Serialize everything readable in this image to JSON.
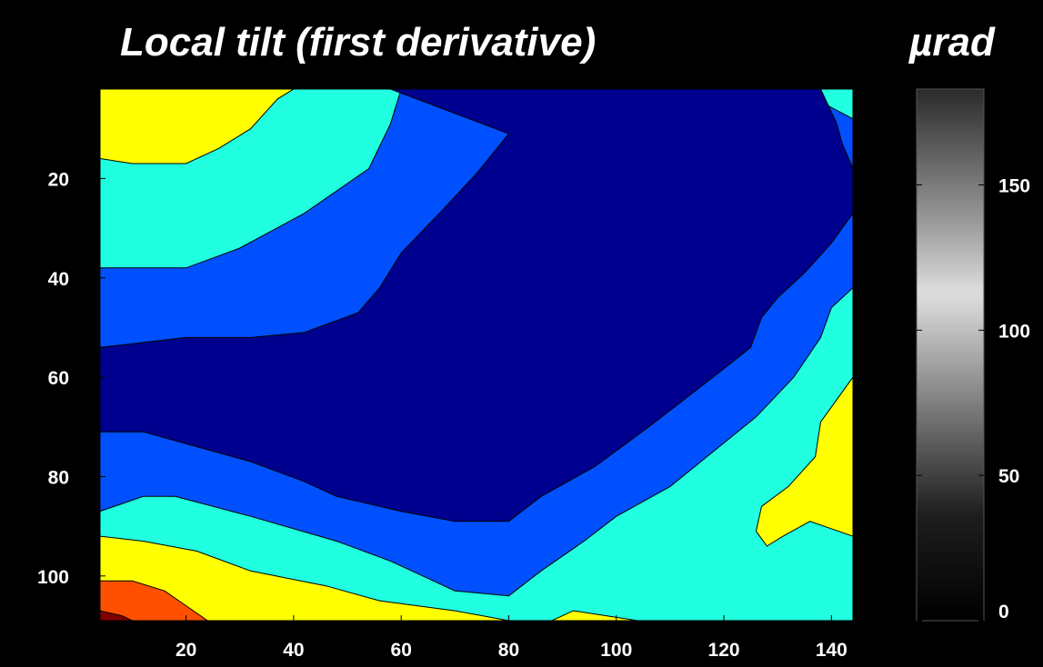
{
  "chart_data": {
    "type": "contourf",
    "title": "Local tilt (first derivative)",
    "colorbar_label": "µrad",
    "xlabel": "",
    "ylabel": "",
    "xlim": [
      4,
      144
    ],
    "ylim": [
      109,
      2
    ],
    "y_axis_reversed": true,
    "xticks": [
      20,
      40,
      60,
      80,
      100,
      120,
      140
    ],
    "yticks": [
      20,
      40,
      60,
      80,
      100
    ],
    "colorbar": {
      "colormap": "gray",
      "range": [
        0,
        183
      ],
      "ticks": [
        0,
        50,
        100,
        150
      ]
    },
    "contour_levels": [
      {
        "level": 1,
        "color": "#00008f"
      },
      {
        "level": 2,
        "color": "#0050ff"
      },
      {
        "level": 3,
        "color": "#20ffdf"
      },
      {
        "level": 4,
        "color": "#ffff00"
      },
      {
        "level": 5,
        "color": "#ff5000"
      },
      {
        "level": 6,
        "color": "#800000"
      }
    ],
    "regions": [
      {
        "level": 2,
        "points": [
          [
            4,
            2
          ],
          [
            144,
            2
          ],
          [
            144,
            109
          ],
          [
            4,
            109
          ]
        ]
      },
      {
        "level": 3,
        "points": [
          [
            4,
            2
          ],
          [
            60,
            2
          ],
          [
            58,
            9
          ],
          [
            54,
            18
          ],
          [
            42,
            27
          ],
          [
            30,
            34
          ],
          [
            20,
            38
          ],
          [
            4,
            38
          ],
          [
            4,
            2
          ]
        ]
      },
      {
        "level": 3,
        "points": [
          [
            136,
            2
          ],
          [
            144,
            2
          ],
          [
            144,
            8
          ],
          [
            137,
            4
          ]
        ]
      },
      {
        "level": 3,
        "points": [
          [
            144,
            42
          ],
          [
            140,
            46
          ],
          [
            138,
            52
          ],
          [
            133,
            60
          ],
          [
            126,
            68
          ],
          [
            118,
            75
          ],
          [
            110,
            82
          ],
          [
            100,
            88
          ],
          [
            94,
            93
          ],
          [
            86,
            99
          ],
          [
            80,
            104
          ],
          [
            70,
            103
          ],
          [
            58,
            97
          ],
          [
            48,
            93
          ],
          [
            32,
            88
          ],
          [
            18,
            84
          ],
          [
            12,
            84
          ],
          [
            4,
            87
          ],
          [
            4,
            109
          ],
          [
            144,
            109
          ]
        ]
      },
      {
        "level": 1,
        "points": [
          [
            58,
            2
          ],
          [
            138,
            2
          ],
          [
            141,
            9
          ],
          [
            142,
            13
          ],
          [
            144,
            18
          ],
          [
            144,
            27
          ],
          [
            140,
            33
          ],
          [
            135,
            39
          ],
          [
            130,
            44
          ],
          [
            127,
            48
          ],
          [
            125,
            54
          ],
          [
            118,
            60
          ],
          [
            106,
            70
          ],
          [
            96,
            78
          ],
          [
            86,
            84
          ],
          [
            80,
            89
          ],
          [
            70,
            89
          ],
          [
            60,
            87
          ],
          [
            48,
            84
          ],
          [
            42,
            81
          ],
          [
            32,
            77
          ],
          [
            22,
            74
          ],
          [
            12,
            71
          ],
          [
            4,
            71
          ],
          [
            4,
            54
          ],
          [
            20,
            52
          ],
          [
            32,
            52
          ],
          [
            42,
            51
          ],
          [
            52,
            47
          ],
          [
            56,
            42
          ],
          [
            60,
            35
          ],
          [
            68,
            26
          ],
          [
            74,
            19
          ],
          [
            80,
            11
          ]
        ]
      },
      {
        "level": 4,
        "points": [
          [
            4,
            2
          ],
          [
            40,
            2
          ],
          [
            37,
            4
          ],
          [
            32,
            10
          ],
          [
            26,
            14
          ],
          [
            20,
            17
          ],
          [
            10,
            17
          ],
          [
            4,
            16
          ]
        ]
      },
      {
        "level": 4,
        "points": [
          [
            144,
            60
          ],
          [
            138,
            69
          ],
          [
            137,
            76
          ],
          [
            132,
            82
          ],
          [
            127,
            86
          ],
          [
            126,
            91
          ],
          [
            128,
            94
          ],
          [
            131,
            92
          ],
          [
            136,
            89
          ],
          [
            144,
            92
          ]
        ]
      },
      {
        "level": 4,
        "points": [
          [
            4,
            92
          ],
          [
            12,
            93
          ],
          [
            22,
            95
          ],
          [
            32,
            99
          ],
          [
            46,
            102
          ],
          [
            56,
            105
          ],
          [
            70,
            107
          ],
          [
            80,
            109
          ],
          [
            4,
            109
          ]
        ]
      },
      {
        "level": 4,
        "points": [
          [
            88,
            109
          ],
          [
            92,
            107
          ],
          [
            98,
            108
          ],
          [
            104,
            109
          ]
        ]
      },
      {
        "level": 5,
        "points": [
          [
            4,
            101
          ],
          [
            10,
            101
          ],
          [
            16,
            103
          ],
          [
            20,
            106
          ],
          [
            24,
            109
          ],
          [
            4,
            109
          ]
        ]
      },
      {
        "level": 6,
        "points": [
          [
            4,
            107
          ],
          [
            8,
            108
          ],
          [
            10,
            109
          ],
          [
            4,
            109
          ]
        ]
      }
    ]
  }
}
